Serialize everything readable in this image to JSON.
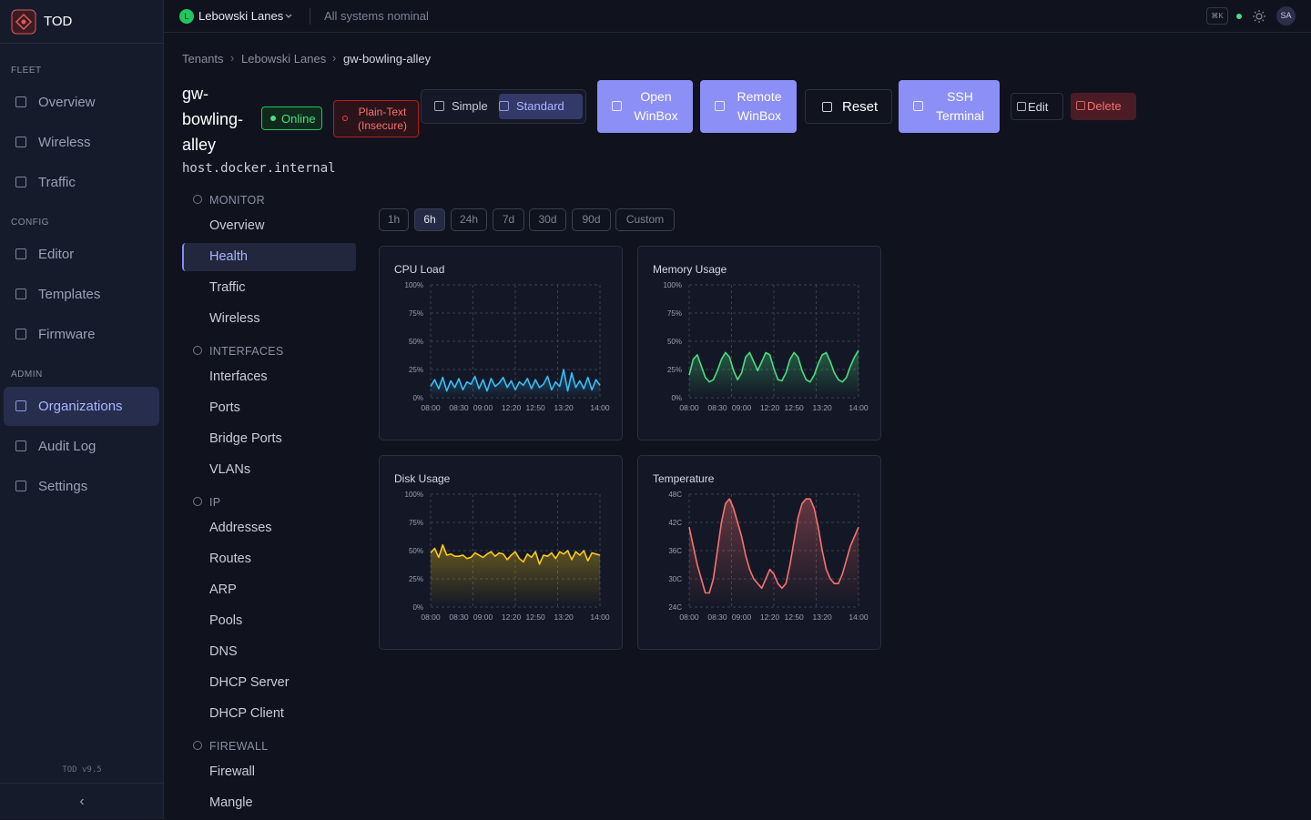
{
  "sidebar": {
    "brand": "TOD",
    "sections": [
      {
        "title": "FLEET",
        "items": [
          "Overview",
          "Wireless",
          "Traffic"
        ]
      },
      {
        "title": "CONFIG",
        "items": [
          "Editor",
          "Templates",
          "Firmware"
        ]
      },
      {
        "title": "ADMIN",
        "items": [
          "Organizations",
          "Audit Log",
          "Settings"
        ]
      }
    ],
    "version": "TOD v9.5"
  },
  "topbar": {
    "tenant_initial": "L",
    "tenant": "Lebowski Lanes",
    "status": "All systems nominal",
    "shortcut": "⌘K",
    "user": "SA"
  },
  "breadcrumb": [
    "Tenants",
    "Lebowski Lanes",
    "gw-bowling-alley"
  ],
  "device": {
    "name": "gw-bowling-alley",
    "host": "host.docker.internal",
    "status": "Online",
    "security": "Plain-Text (Insecure)"
  },
  "view_modes": [
    "Simple",
    "Standard"
  ],
  "actions": [
    "Open WinBox",
    "Remote WinBox",
    "Reset",
    "SSH Terminal",
    "Edit",
    "Delete"
  ],
  "subnav": [
    {
      "title": "MONITOR",
      "items": [
        "Overview",
        "Health",
        "Traffic",
        "Wireless"
      ]
    },
    {
      "title": "INTERFACES",
      "items": [
        "Interfaces",
        "Ports",
        "Bridge Ports",
        "VLANs"
      ]
    },
    {
      "title": "IP",
      "items": [
        "Addresses",
        "Routes",
        "ARP",
        "Pools",
        "DNS",
        "DHCP Server",
        "DHCP Client"
      ]
    },
    {
      "title": "FIREWALL",
      "items": [
        "Firewall",
        "Mangle"
      ]
    }
  ],
  "ranges": [
    "1h",
    "6h",
    "24h",
    "7d",
    "30d",
    "90d",
    "Custom"
  ],
  "chart_data": [
    {
      "type": "line",
      "title": "CPU Load",
      "color": "#38bdf8",
      "categories": [
        "08:00",
        null,
        null,
        null,
        null,
        null,
        null,
        "08:30",
        null,
        null,
        null,
        null,
        null,
        "09:00",
        null,
        null,
        null,
        null,
        null,
        null,
        "12:20",
        null,
        null,
        null,
        null,
        null,
        "12:50",
        null,
        null,
        null,
        null,
        null,
        null,
        "13:20",
        null,
        null,
        null,
        null,
        null,
        null,
        null,
        null,
        "14:00"
      ],
      "values": [
        10,
        16,
        8,
        18,
        6,
        15,
        9,
        17,
        7,
        14,
        12,
        19,
        8,
        16,
        6,
        17,
        10,
        13,
        18,
        9,
        15,
        7,
        14,
        11,
        17,
        8,
        16,
        9,
        12,
        19,
        7,
        14,
        10,
        25,
        6,
        22,
        9,
        15,
        8,
        18,
        7,
        16,
        11
      ],
      "ylim": [
        0,
        100
      ],
      "yticks": [
        {
          "value": 0,
          "label": "0%"
        },
        {
          "value": 25,
          "label": "25%"
        },
        {
          "value": 50,
          "label": "50%"
        },
        {
          "value": 75,
          "label": "75%"
        },
        {
          "value": 100,
          "label": "100%"
        }
      ],
      "grid": true
    },
    {
      "type": "line",
      "title": "Memory Usage",
      "color": "#4ade80",
      "categories": [
        "08:00",
        null,
        null,
        null,
        null,
        null,
        null,
        "08:30",
        null,
        null,
        null,
        null,
        null,
        "09:00",
        null,
        null,
        null,
        null,
        null,
        null,
        "12:20",
        null,
        null,
        null,
        null,
        null,
        "12:50",
        null,
        null,
        null,
        null,
        null,
        null,
        "13:20",
        null,
        null,
        null,
        null,
        null,
        null,
        null,
        null,
        "14:00"
      ],
      "values": [
        20,
        34,
        38,
        28,
        18,
        14,
        16,
        24,
        34,
        40,
        36,
        24,
        16,
        22,
        36,
        40,
        32,
        24,
        32,
        40,
        38,
        26,
        16,
        15,
        22,
        34,
        40,
        36,
        24,
        16,
        14,
        20,
        30,
        38,
        40,
        32,
        22,
        16,
        14,
        18,
        28,
        36,
        42
      ],
      "ylim": [
        0,
        100
      ],
      "yticks": [
        {
          "value": 0,
          "label": "0%"
        },
        {
          "value": 25,
          "label": "25%"
        },
        {
          "value": 50,
          "label": "50%"
        },
        {
          "value": 75,
          "label": "75%"
        },
        {
          "value": 100,
          "label": "100%"
        }
      ],
      "grid": true
    },
    {
      "type": "line",
      "title": "Disk Usage",
      "color": "#facc15",
      "categories": [
        "08:00",
        null,
        null,
        null,
        null,
        null,
        null,
        "08:30",
        null,
        null,
        null,
        null,
        null,
        "09:00",
        null,
        null,
        null,
        null,
        null,
        null,
        "12:20",
        null,
        null,
        null,
        null,
        null,
        "12:50",
        null,
        null,
        null,
        null,
        null,
        null,
        "13:20",
        null,
        null,
        null,
        null,
        null,
        null,
        null,
        null,
        "14:00"
      ],
      "values": [
        48,
        52,
        44,
        55,
        46,
        47,
        45,
        45,
        46,
        43,
        44,
        48,
        46,
        44,
        47,
        49,
        45,
        48,
        47,
        42,
        46,
        49,
        43,
        40,
        47,
        44,
        49,
        38,
        46,
        45,
        48,
        43,
        49,
        47,
        50,
        42,
        49,
        46,
        50,
        41,
        48,
        47,
        46
      ],
      "ylim": [
        0,
        100
      ],
      "yticks": [
        {
          "value": 0,
          "label": "0%"
        },
        {
          "value": 25,
          "label": "25%"
        },
        {
          "value": 50,
          "label": "50%"
        },
        {
          "value": 75,
          "label": "75%"
        },
        {
          "value": 100,
          "label": "100%"
        }
      ],
      "grid": true
    },
    {
      "type": "line",
      "title": "Temperature",
      "color": "#f87171",
      "categories": [
        "08:00",
        null,
        null,
        null,
        null,
        null,
        null,
        "08:30",
        null,
        null,
        null,
        null,
        null,
        "09:00",
        null,
        null,
        null,
        null,
        null,
        null,
        "12:20",
        null,
        null,
        null,
        null,
        null,
        "12:50",
        null,
        null,
        null,
        null,
        null,
        null,
        "13:20",
        null,
        null,
        null,
        null,
        null,
        null,
        null,
        null,
        "14:00"
      ],
      "values": [
        41,
        37,
        33,
        30,
        27,
        27,
        30,
        36,
        42,
        46,
        47,
        45,
        42,
        39,
        35,
        32,
        30,
        29,
        28,
        30,
        32,
        31,
        29,
        28,
        29,
        33,
        38,
        43,
        46,
        47,
        47,
        45,
        41,
        36,
        32,
        30,
        29,
        29,
        31,
        34,
        37,
        39,
        41
      ],
      "ylim": [
        24,
        48
      ],
      "yticks": [
        {
          "value": 24,
          "label": "24C"
        },
        {
          "value": 30,
          "label": "30C"
        },
        {
          "value": 36,
          "label": "36C"
        },
        {
          "value": 42,
          "label": "42C"
        },
        {
          "value": 48,
          "label": "48C"
        }
      ],
      "grid": true
    }
  ]
}
